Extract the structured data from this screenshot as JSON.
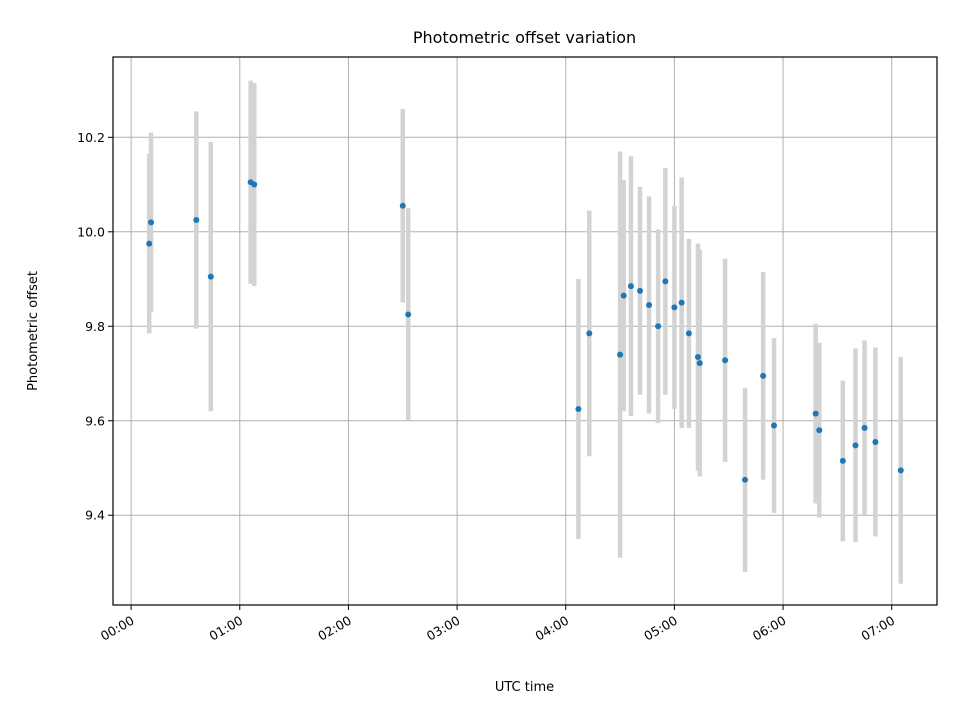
{
  "chart_data": {
    "type": "scatter",
    "title": "Photometric offset variation",
    "xlabel": "UTC time",
    "ylabel": "Photometric offset",
    "x_unit": "UTC time (HH:MM)",
    "xlim": [
      "-00:10",
      "07:25"
    ],
    "ylim": [
      9.21,
      10.37
    ],
    "x_ticks": [
      "00:00",
      "01:00",
      "02:00",
      "03:00",
      "04:00",
      "05:00",
      "06:00",
      "07:00"
    ],
    "y_ticks": [
      9.4,
      9.6,
      9.8,
      10.0,
      10.2
    ],
    "y_tick_labels": [
      "9.4",
      "9.6",
      "9.8",
      "10.0",
      "10.2"
    ],
    "grid": true,
    "marker_color": "#1f77b4",
    "errorbar_color": "#d3d3d3",
    "series": [
      {
        "points": [
          {
            "x": "00:10",
            "y": 9.975,
            "err": 0.19
          },
          {
            "x": "00:11",
            "y": 10.02,
            "err": 0.19
          },
          {
            "x": "00:36",
            "y": 10.025,
            "err": 0.23
          },
          {
            "x": "00:44",
            "y": 9.905,
            "err": 0.285
          },
          {
            "x": "01:06",
            "y": 10.105,
            "err": 0.215
          },
          {
            "x": "01:08",
            "y": 10.1,
            "err": 0.215
          },
          {
            "x": "02:30",
            "y": 10.055,
            "err": 0.205
          },
          {
            "x": "02:33",
            "y": 9.825,
            "err": 0.225
          },
          {
            "x": "04:07",
            "y": 9.625,
            "err": 0.275
          },
          {
            "x": "04:13",
            "y": 9.785,
            "err": 0.26
          },
          {
            "x": "04:30",
            "y": 9.74,
            "err": 0.43
          },
          {
            "x": "04:32",
            "y": 9.865,
            "err": 0.245
          },
          {
            "x": "04:36",
            "y": 9.885,
            "err": 0.275
          },
          {
            "x": "04:41",
            "y": 9.875,
            "err": 0.22
          },
          {
            "x": "04:46",
            "y": 9.845,
            "err": 0.23
          },
          {
            "x": "04:51",
            "y": 9.8,
            "err": 0.205
          },
          {
            "x": "04:55",
            "y": 9.895,
            "err": 0.24
          },
          {
            "x": "05:00",
            "y": 9.84,
            "err": 0.215
          },
          {
            "x": "05:04",
            "y": 9.85,
            "err": 0.265
          },
          {
            "x": "05:08",
            "y": 9.785,
            "err": 0.2
          },
          {
            "x": "05:13",
            "y": 9.735,
            "err": 0.24
          },
          {
            "x": "05:14",
            "y": 9.722,
            "err": 0.24
          },
          {
            "x": "05:28",
            "y": 9.728,
            "err": 0.215
          },
          {
            "x": "05:39",
            "y": 9.475,
            "err": 0.195
          },
          {
            "x": "05:49",
            "y": 9.695,
            "err": 0.22
          },
          {
            "x": "05:55",
            "y": 9.59,
            "err": 0.185
          },
          {
            "x": "06:18",
            "y": 9.615,
            "err": 0.19
          },
          {
            "x": "06:20",
            "y": 9.58,
            "err": 0.185
          },
          {
            "x": "06:33",
            "y": 9.515,
            "err": 0.17
          },
          {
            "x": "06:40",
            "y": 9.548,
            "err": 0.205
          },
          {
            "x": "06:45",
            "y": 9.585,
            "err": 0.185
          },
          {
            "x": "06:51",
            "y": 9.555,
            "err": 0.2
          },
          {
            "x": "07:05",
            "y": 9.495,
            "err": 0.24
          }
        ]
      }
    ]
  }
}
